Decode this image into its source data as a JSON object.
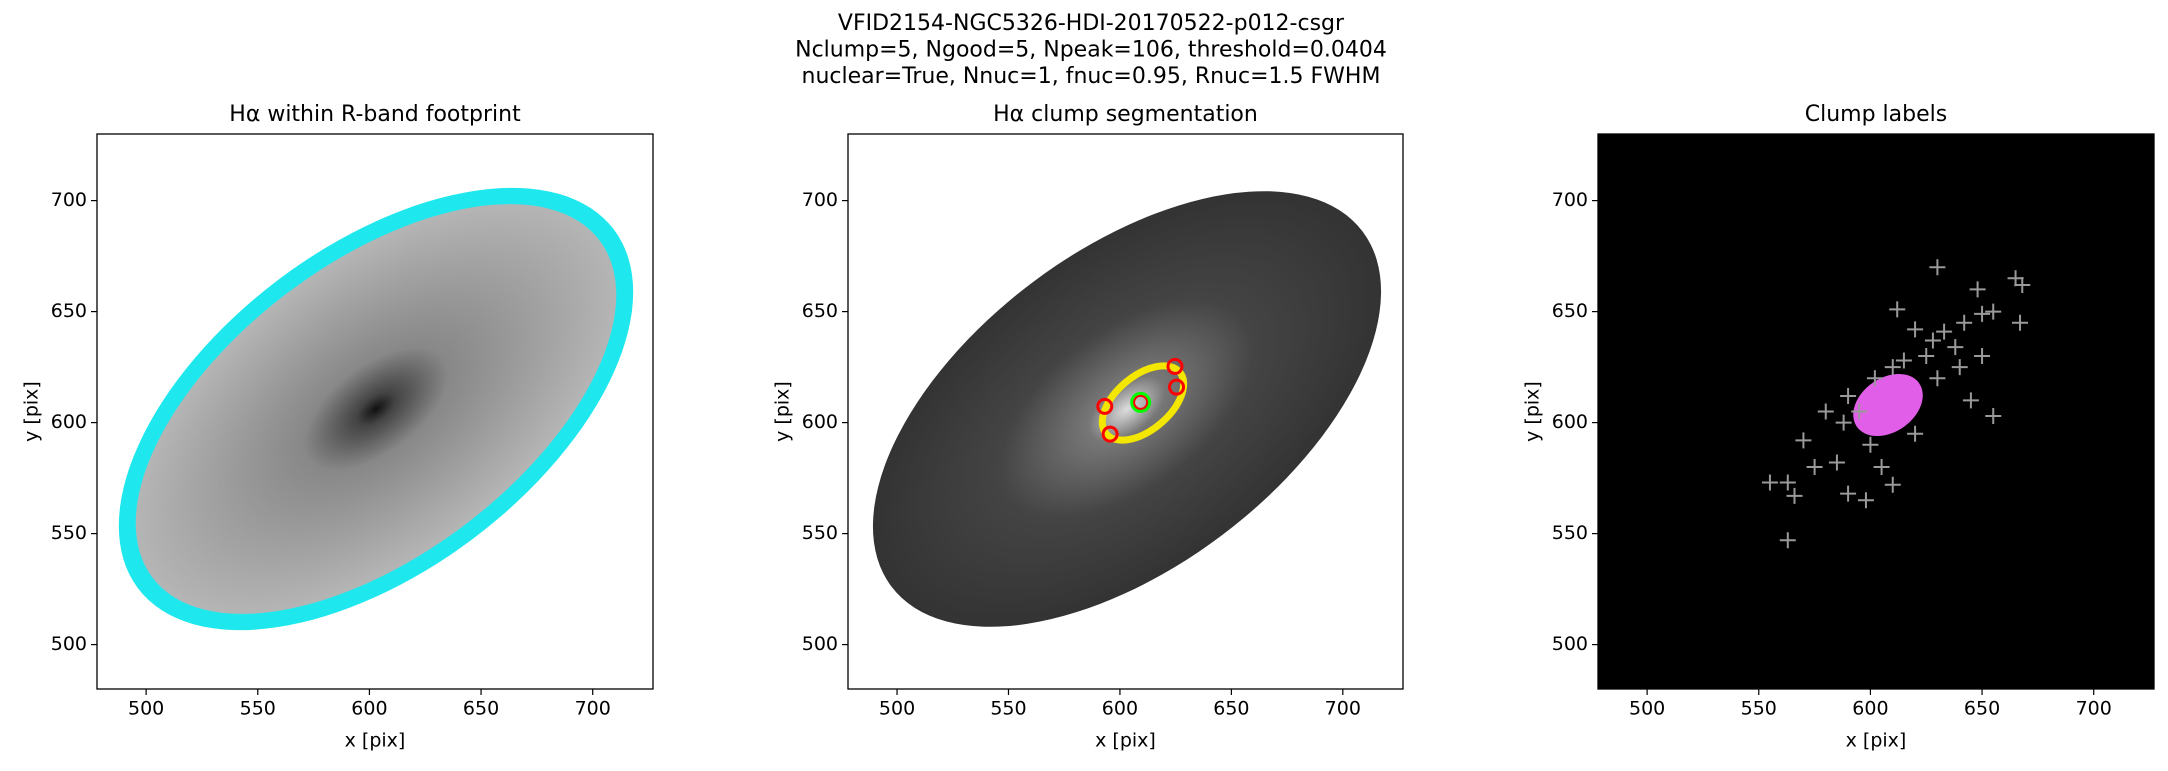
{
  "suptitle": [
    "VFID2154-NGC5326-HDI-20170522-p012-csgr",
    "Nclump=5, Ngood=5, Npeak=106, threshold=0.0404",
    "nuclear=True, Nnuc=1, fnuc=0.95, Rnuc=1.5 FWHM"
  ],
  "chart_data": [
    {
      "type": "image",
      "title": "Hα within R-band footprint",
      "xlabel": "x [pix]",
      "ylabel": "y [pix]",
      "xlim": [
        478,
        727
      ],
      "ylim": [
        480,
        730
      ],
      "xticks": [
        500,
        550,
        600,
        650,
        700
      ],
      "yticks": [
        500,
        550,
        600,
        650,
        700
      ]
    },
    {
      "type": "image",
      "title": "Hα clump segmentation",
      "xlabel": "x [pix]",
      "ylabel": "y [pix]",
      "xlim": [
        478,
        727
      ],
      "ylim": [
        480,
        730
      ],
      "xticks": [
        500,
        550,
        600,
        650,
        700
      ],
      "yticks": [
        500,
        550,
        600,
        650,
        700
      ],
      "markers": [
        {
          "color": "red",
          "x": [
            593.2,
            595.6,
            624.7,
            625.4,
            609.3
          ],
          "y": [
            607.3,
            594.8,
            625.3,
            616.0,
            609.1
          ]
        },
        {
          "color": "lime",
          "x": [
            609.3
          ],
          "y": [
            609.1
          ]
        }
      ]
    },
    {
      "type": "image",
      "title": "Clump labels",
      "xlabel": "x [pix]",
      "ylabel": "y [pix]",
      "xlim": [
        478,
        727
      ],
      "ylim": [
        480,
        730
      ],
      "xticks": [
        500,
        550,
        600,
        650,
        700
      ],
      "yticks": [
        500,
        550,
        600,
        650,
        700
      ],
      "background": "#000000",
      "peaks": {
        "color": "#9a9a9a",
        "x": [
          630,
          665,
          668,
          648,
          612,
          642,
          667,
          650,
          655,
          633,
          620,
          628,
          638,
          625,
          640,
          650,
          630,
          655,
          645,
          590,
          580,
          570,
          555,
          563,
          566,
          563,
          590,
          598,
          585,
          610,
          600,
          620,
          575,
          602,
          610,
          615,
          595,
          588,
          605
        ],
        "y": [
          670,
          665,
          662,
          660,
          651,
          645,
          645,
          649,
          650,
          641,
          642,
          637,
          634,
          630,
          625,
          630,
          620,
          603,
          610,
          612,
          605,
          592,
          573,
          573,
          567,
          547,
          568,
          565,
          582,
          572,
          590,
          595,
          580,
          620,
          625,
          628,
          605,
          600,
          580
        ]
      }
    }
  ]
}
